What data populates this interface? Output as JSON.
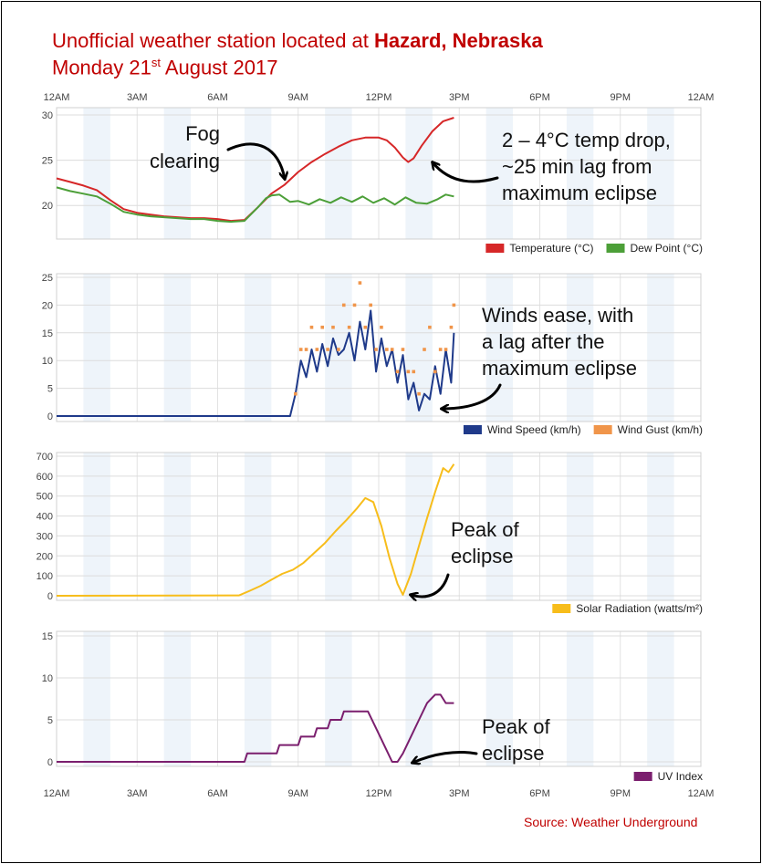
{
  "title": {
    "line1_prefix": "Unofficial weather station located at ",
    "line1_location": "Hazard, Nebraska",
    "line2_prefix": "Monday 21",
    "line2_sup": "st",
    "line2_suffix": " August 2017"
  },
  "source": "Source: Weather Underground",
  "time_ticks": [
    "12AM",
    "3AM",
    "6AM",
    "9AM",
    "12PM",
    "3PM",
    "6PM",
    "9PM",
    "12AM"
  ],
  "colors": {
    "temperature": "#d62728",
    "dew_point": "#4c9f38",
    "wind_speed": "#1f3a8a",
    "wind_gust": "#f0954a",
    "solar": "#f7bd1b",
    "uv": "#7b1f6e",
    "title": "#c00000",
    "band": "#eef4fa"
  },
  "annotations": {
    "fog": [
      "Fog",
      "clearing"
    ],
    "temp_drop": [
      "2 – 4°C temp drop,",
      "~25 min lag from",
      "maximum eclipse"
    ],
    "winds": [
      "Winds ease, with",
      "a lag after the",
      "maximum eclipse"
    ],
    "solar_peak": [
      "Peak of",
      "eclipse"
    ],
    "uv_peak": [
      "Peak of",
      "eclipse"
    ]
  },
  "chart_data": [
    {
      "type": "line",
      "x_unit": "hour of day",
      "xlim": [
        0,
        24
      ],
      "ylim": [
        17,
        30
      ],
      "yticks": [
        20,
        25,
        30
      ],
      "legend_position": "bottom-right",
      "series": [
        {
          "name": "Temperature (°C)",
          "x": [
            0,
            0.5,
            1,
            1.5,
            2,
            2.5,
            3,
            3.5,
            4,
            4.5,
            5,
            5.5,
            6,
            6.5,
            7,
            7.5,
            8,
            8.5,
            9,
            9.5,
            10,
            10.5,
            11,
            11.5,
            12,
            12.3,
            12.6,
            12.9,
            13.1,
            13.3,
            13.6,
            14,
            14.4,
            14.8
          ],
          "values": [
            23,
            22.6,
            22.2,
            21.7,
            20.6,
            19.6,
            19.2,
            19,
            18.8,
            18.7,
            18.6,
            18.6,
            18.5,
            18.3,
            18.4,
            19.8,
            21.3,
            22.3,
            23.7,
            24.8,
            25.7,
            26.5,
            27.2,
            27.5,
            27.5,
            27.2,
            26.4,
            25.3,
            24.8,
            25.2,
            26.6,
            28.2,
            29.3,
            29.7
          ]
        },
        {
          "name": "Dew Point (°C)",
          "x": [
            0,
            0.5,
            1,
            1.5,
            2,
            2.5,
            3,
            3.5,
            4,
            4.5,
            5,
            5.5,
            6,
            6.5,
            7,
            7.5,
            7.8,
            8,
            8.3,
            8.7,
            9,
            9.4,
            9.8,
            10.2,
            10.6,
            11,
            11.4,
            11.8,
            12.2,
            12.6,
            13,
            13.4,
            13.8,
            14.2,
            14.5,
            14.8
          ],
          "values": [
            22,
            21.6,
            21.3,
            21,
            20.2,
            19.3,
            19,
            18.8,
            18.7,
            18.6,
            18.5,
            18.5,
            18.3,
            18.2,
            18.3,
            19.8,
            20.8,
            21.1,
            21.2,
            20.4,
            20.5,
            20.1,
            20.7,
            20.3,
            20.9,
            20.4,
            21,
            20.3,
            20.8,
            20.1,
            20.9,
            20.3,
            20.2,
            20.7,
            21.2,
            21
          ]
        }
      ]
    },
    {
      "type": "line",
      "x_unit": "hour of day",
      "xlim": [
        0,
        24
      ],
      "ylim": [
        0,
        25
      ],
      "yticks": [
        0,
        5,
        10,
        15,
        20,
        25
      ],
      "legend_position": "bottom-right",
      "series": [
        {
          "name": "Wind Speed (km/h)",
          "x": [
            0,
            8.7,
            8.9,
            9.1,
            9.3,
            9.5,
            9.7,
            9.9,
            10.1,
            10.3,
            10.5,
            10.7,
            10.9,
            11.1,
            11.3,
            11.5,
            11.7,
            11.9,
            12.1,
            12.3,
            12.5,
            12.7,
            12.9,
            13.1,
            13.3,
            13.5,
            13.7,
            13.9,
            14.1,
            14.3,
            14.5,
            14.7,
            14.8
          ],
          "values": [
            0,
            0,
            4,
            10,
            7,
            12,
            8,
            13,
            9,
            14,
            11,
            12,
            15,
            10,
            17,
            12,
            19,
            8,
            14,
            9,
            12,
            6,
            11,
            3,
            6,
            1,
            4,
            3,
            9,
            4,
            12,
            6,
            15
          ]
        },
        {
          "name": "Wind Gust (km/h)",
          "mode": "markers",
          "x": [
            8.9,
            9.1,
            9.3,
            9.5,
            9.7,
            9.9,
            10.1,
            10.3,
            10.5,
            10.7,
            10.9,
            11.1,
            11.3,
            11.5,
            11.7,
            11.9,
            12.1,
            12.3,
            12.5,
            12.7,
            12.9,
            13.1,
            13.3,
            13.5,
            13.7,
            13.9,
            14.1,
            14.3,
            14.5,
            14.7,
            14.8
          ],
          "values": [
            4,
            12,
            12,
            16,
            12,
            16,
            12,
            16,
            12,
            20,
            16,
            20,
            24,
            16,
            20,
            12,
            16,
            12,
            12,
            8,
            12,
            8,
            8,
            4,
            12,
            16,
            8,
            12,
            12,
            16,
            20
          ]
        }
      ]
    },
    {
      "type": "line",
      "x_unit": "hour of day",
      "xlim": [
        0,
        24
      ],
      "ylim": [
        0,
        700
      ],
      "yticks": [
        0,
        100,
        200,
        300,
        400,
        500,
        600,
        700
      ],
      "legend_position": "bottom-right",
      "series": [
        {
          "name": "Solar Radiation (watts/m²)",
          "x": [
            0,
            6.8,
            7.2,
            7.6,
            8,
            8.4,
            8.8,
            9.2,
            9.6,
            10,
            10.4,
            10.8,
            11.2,
            11.5,
            11.8,
            12.1,
            12.4,
            12.7,
            12.9,
            13.2,
            13.5,
            13.8,
            14.1,
            14.4,
            14.6,
            14.8
          ],
          "values": [
            0,
            2,
            25,
            50,
            80,
            110,
            130,
            165,
            215,
            265,
            325,
            380,
            440,
            490,
            470,
            350,
            190,
            60,
            5,
            110,
            250,
            390,
            520,
            640,
            620,
            660
          ]
        }
      ]
    },
    {
      "type": "line",
      "x_unit": "hour of day",
      "xlim": [
        0,
        24
      ],
      "ylim": [
        0,
        15
      ],
      "yticks": [
        0,
        5,
        10,
        15
      ],
      "legend_position": "bottom-right",
      "series": [
        {
          "name": "UV Index",
          "x": [
            0,
            7,
            7.1,
            8.2,
            8.3,
            9,
            9.1,
            9.6,
            9.7,
            10.1,
            10.2,
            10.6,
            10.7,
            11,
            11.1,
            11.6,
            11.9,
            12.2,
            12.5,
            12.7,
            12.9,
            13.2,
            13.5,
            13.8,
            14.1,
            14.3,
            14.5,
            14.8
          ],
          "values": [
            0,
            0,
            1,
            1,
            2,
            2,
            3,
            3,
            4,
            4,
            5,
            5,
            6,
            6,
            6,
            6,
            4,
            2,
            0,
            0,
            1,
            3,
            5,
            7,
            8,
            8,
            7,
            7
          ]
        }
      ]
    }
  ]
}
